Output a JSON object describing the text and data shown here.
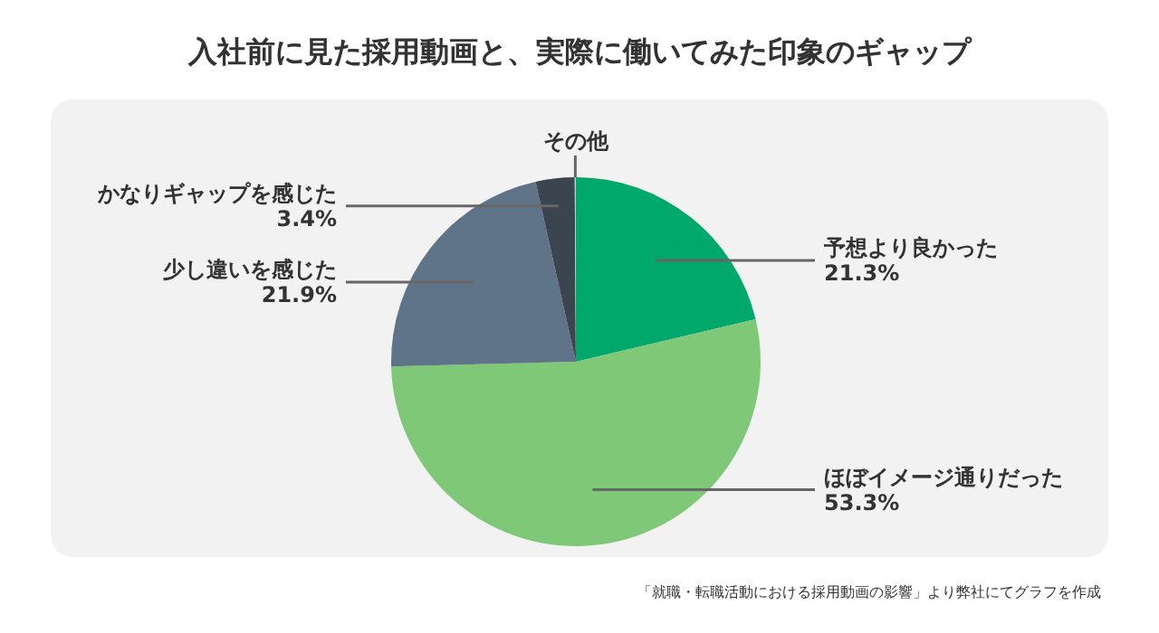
{
  "chart_data": {
    "type": "pie",
    "title": "入社前に見た採用動画と、実際に働いてみた印象のギャップ",
    "categories": [
      "予想より良かった",
      "ほぼイメージ通りだった",
      "少し違いを感じた",
      "かなりギャップを感じた",
      "その他"
    ],
    "values": [
      21.3,
      53.3,
      21.9,
      3.4,
      0.1
    ],
    "value_labels": [
      "21.3%",
      "53.3%",
      "21.9%",
      "3.4%",
      null
    ],
    "colors": [
      "#00a86b",
      "#7ec878",
      "#5f7489",
      "#3b4550",
      "#c8c8c8"
    ],
    "annotations": [
      "「就職・転職活動における採用動画の影響」より弊社にてグラフを作成"
    ]
  }
}
